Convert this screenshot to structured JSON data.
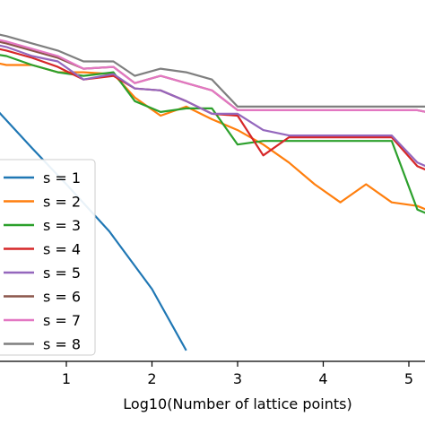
{
  "chart_data": {
    "type": "line",
    "title": "",
    "xlabel": "Log10(Number of lattice points)",
    "ylabel": "",
    "xlim": [
      -0.1,
      5.2
    ],
    "ylim": [
      0,
      1
    ],
    "grid": false,
    "legend_position": "lower-left",
    "x_ticks": [
      {
        "value": 1,
        "label": "1"
      },
      {
        "value": 2,
        "label": "2"
      },
      {
        "value": 3,
        "label": "3"
      },
      {
        "value": 4,
        "label": "4"
      },
      {
        "value": 5,
        "label": "5"
      }
    ],
    "series": [
      {
        "name": "s = 1",
        "color": "#1f77b4",
        "x": [
          -0.1,
          0.6,
          1.0,
          1.5,
          2.0,
          2.4
        ],
        "y": [
          0.77,
          0.59,
          0.49,
          0.36,
          0.2,
          0.03
        ]
      },
      {
        "name": "s = 2",
        "color": "#ff7f0e",
        "x": [
          -0.1,
          0.3,
          0.6,
          0.9,
          1.2,
          1.55,
          1.8,
          2.1,
          2.4,
          2.7,
          3.0,
          3.3,
          3.6,
          3.9,
          4.2,
          4.5,
          4.8,
          5.1,
          5.2
        ],
        "y": [
          0.84,
          0.82,
          0.82,
          0.8,
          0.8,
          0.795,
          0.73,
          0.68,
          0.705,
          0.67,
          0.64,
          0.6,
          0.55,
          0.49,
          0.44,
          0.49,
          0.44,
          0.43,
          0.42
        ]
      },
      {
        "name": "s = 3",
        "color": "#2ca02c",
        "x": [
          -0.1,
          0.3,
          0.6,
          0.9,
          1.2,
          1.55,
          1.8,
          2.1,
          2.4,
          2.7,
          3.0,
          3.3,
          3.6,
          3.9,
          4.2,
          4.5,
          4.8,
          5.1,
          5.2
        ],
        "y": [
          0.86,
          0.845,
          0.82,
          0.8,
          0.79,
          0.8,
          0.72,
          0.69,
          0.7,
          0.7,
          0.6,
          0.61,
          0.61,
          0.61,
          0.61,
          0.61,
          0.61,
          0.42,
          0.41
        ]
      },
      {
        "name": "s = 4",
        "color": "#d62728",
        "x": [
          -0.1,
          0.3,
          0.6,
          0.9,
          1.2,
          1.55,
          1.8,
          2.1,
          2.4,
          2.7,
          3.0,
          3.3,
          3.6,
          3.9,
          4.2,
          4.5,
          4.8,
          5.1,
          5.2
        ],
        "y": [
          0.88,
          0.86,
          0.84,
          0.815,
          0.78,
          0.79,
          0.755,
          0.75,
          0.72,
          0.685,
          0.68,
          0.57,
          0.62,
          0.62,
          0.62,
          0.62,
          0.62,
          0.54,
          0.53
        ]
      },
      {
        "name": "s = 5",
        "color": "#9467bd",
        "x": [
          -0.1,
          0.3,
          0.6,
          0.9,
          1.2,
          1.55,
          1.8,
          2.1,
          2.4,
          2.7,
          3.0,
          3.3,
          3.6,
          3.9,
          4.2,
          4.5,
          4.8,
          5.1,
          5.2
        ],
        "y": [
          0.89,
          0.87,
          0.845,
          0.83,
          0.78,
          0.795,
          0.755,
          0.75,
          0.72,
          0.685,
          0.685,
          0.64,
          0.625,
          0.625,
          0.625,
          0.625,
          0.625,
          0.55,
          0.54
        ]
      },
      {
        "name": "s = 6",
        "color": "#8c564b",
        "x": [
          -0.1,
          0.3,
          0.6,
          0.9,
          1.2,
          1.55,
          1.8,
          2.1,
          2.4,
          2.7,
          3.0,
          3.3,
          3.6,
          3.9,
          4.2,
          4.5,
          4.8,
          5.1,
          5.2
        ],
        "y": [
          0.9,
          0.88,
          0.86,
          0.84,
          0.81,
          0.815,
          0.77,
          0.79,
          0.77,
          0.75,
          0.695,
          0.695,
          0.695,
          0.695,
          0.695,
          0.695,
          0.695,
          0.695,
          0.69
        ]
      },
      {
        "name": "s = 7",
        "color": "#e377c2",
        "x": [
          -0.1,
          0.3,
          0.6,
          0.9,
          1.2,
          1.55,
          1.8,
          2.1,
          2.4,
          2.7,
          3.0,
          3.3,
          3.6,
          3.9,
          4.2,
          4.5,
          4.8,
          5.1,
          5.2
        ],
        "y": [
          0.905,
          0.885,
          0.865,
          0.845,
          0.81,
          0.815,
          0.77,
          0.79,
          0.77,
          0.75,
          0.695,
          0.695,
          0.695,
          0.695,
          0.695,
          0.695,
          0.695,
          0.695,
          0.69
        ]
      },
      {
        "name": "s = 8",
        "color": "#7f7f7f",
        "x": [
          -0.1,
          0.3,
          0.6,
          0.9,
          1.2,
          1.55,
          1.8,
          2.1,
          2.4,
          2.7,
          3.0,
          3.3,
          3.6,
          3.9,
          4.2,
          4.5,
          4.8,
          5.1,
          5.2
        ],
        "y": [
          0.92,
          0.9,
          0.88,
          0.86,
          0.83,
          0.83,
          0.79,
          0.81,
          0.8,
          0.78,
          0.705,
          0.705,
          0.705,
          0.705,
          0.705,
          0.705,
          0.705,
          0.705,
          0.705
        ]
      }
    ]
  }
}
